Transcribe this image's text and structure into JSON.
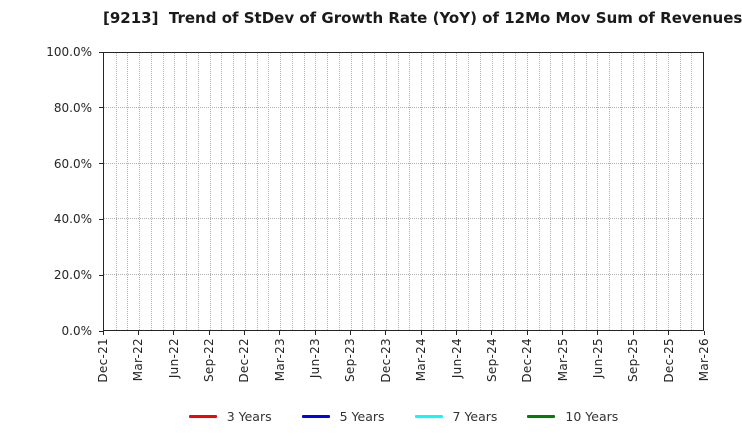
{
  "chart_data": {
    "type": "line",
    "title": "[9213]  Trend of StDev of Growth Rate (YoY) of 12Mo Mov Sum of Revenues",
    "x_tick_labels": [
      "Dec-21",
      "Mar-22",
      "Jun-22",
      "Sep-22",
      "Dec-22",
      "Mar-23",
      "Jun-23",
      "Sep-23",
      "Dec-23",
      "Mar-24",
      "Jun-24",
      "Sep-24",
      "Dec-24",
      "Mar-25",
      "Jun-25",
      "Sep-25",
      "Dec-25",
      "Mar-26"
    ],
    "months_per_labeled_tick": 3,
    "y_tick_labels": [
      "0.0%",
      "20.0%",
      "40.0%",
      "60.0%",
      "80.0%",
      "100.0%"
    ],
    "y_gridlines_pct": [
      20,
      40,
      60,
      80
    ],
    "ylim": [
      0,
      100
    ],
    "grid": true,
    "legend_position": "bottom",
    "series": [
      {
        "name": "3 Years",
        "color": "#ff0000",
        "x": [],
        "values": []
      },
      {
        "name": "5 Years",
        "color": "#0000ff",
        "x": [],
        "values": []
      },
      {
        "name": "7 Years",
        "color": "#00ffff",
        "x": [],
        "values": []
      },
      {
        "name": "10 Years",
        "color": "#008000",
        "x": [],
        "values": []
      }
    ]
  },
  "colors": {
    "background": "#ffffff",
    "grid": "#b0b0b0",
    "spine": "#262626",
    "text": "#262626"
  }
}
